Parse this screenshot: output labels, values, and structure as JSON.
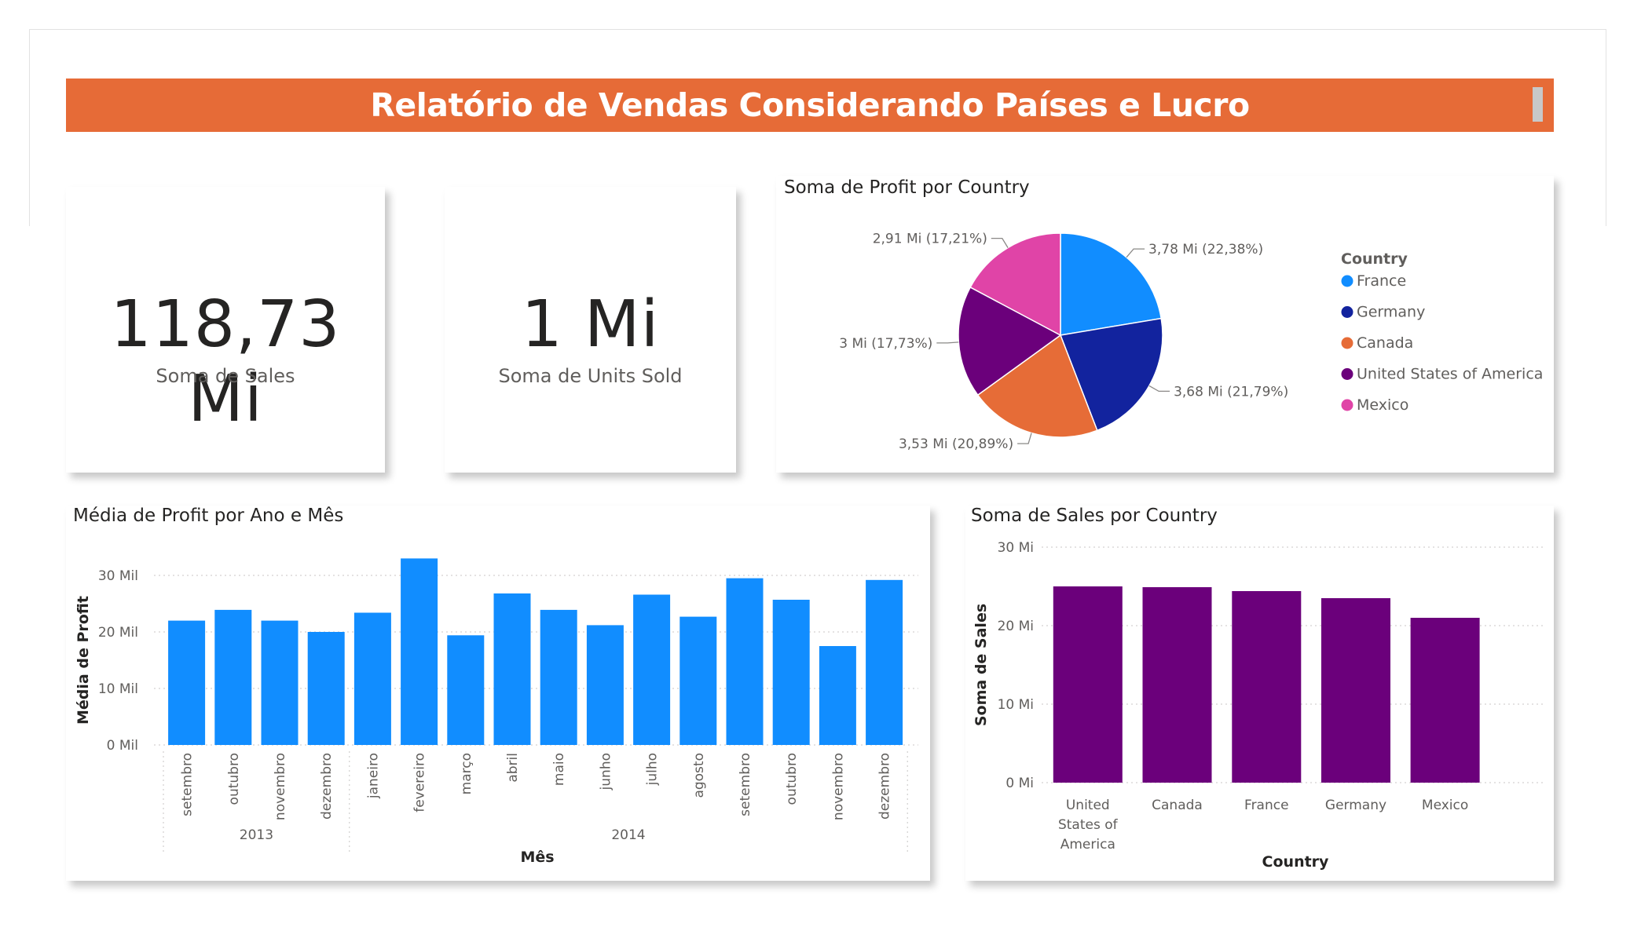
{
  "report": {
    "title": "Relatório de Vendas Considerando Países e Lucro"
  },
  "kpis": [
    {
      "value": "118,73 Mi",
      "label": "Soma de  Sales"
    },
    {
      "value": "1 Mi",
      "label": "Soma de Units Sold"
    }
  ],
  "colors": {
    "banner": "#e66b37",
    "bar_blue": "#118dff",
    "bar_purple": "#6b007b",
    "france": "#118dff",
    "germany": "#12239e",
    "canada": "#e66c37",
    "usa": "#6b007b",
    "mexico": "#e044a7"
  },
  "chart_data": [
    {
      "type": "pie",
      "title": "Soma de Profit por Country",
      "legend_title": "Country",
      "legend_position": "right",
      "slices": [
        {
          "name": "France",
          "value": 3.78,
          "percent": 22.38,
          "label": "3,78 Mi (22,38%)",
          "color": "#118dff"
        },
        {
          "name": "Germany",
          "value": 3.68,
          "percent": 21.79,
          "label": "3,68 Mi (21,79%)",
          "color": "#12239e"
        },
        {
          "name": "Canada",
          "value": 3.53,
          "percent": 20.89,
          "label": "3,53 Mi (20,89%)",
          "color": "#e66c37"
        },
        {
          "name": "United States of America",
          "value": 3.0,
          "percent": 17.73,
          "label": "3 Mi (17,73%)",
          "color": "#6b007b"
        },
        {
          "name": "Mexico",
          "value": 2.91,
          "percent": 17.21,
          "label": "2,91 Mi (17,21%)",
          "color": "#e044a7"
        }
      ]
    },
    {
      "type": "bar",
      "title": "Média de Profit por Ano e Mês",
      "xlabel": "Mês",
      "ylabel": "Média de Profit",
      "ylim": [
        0,
        30
      ],
      "yticks": [
        0,
        10,
        20,
        30
      ],
      "ytick_labels": [
        "0 Mil",
        "10 Mil",
        "20 Mil",
        "30 Mil"
      ],
      "grid": true,
      "categories": [
        "setembro",
        "outubro",
        "novembro",
        "dezembro",
        "janeiro",
        "fevereiro",
        "março",
        "abril",
        "maio",
        "junho",
        "julho",
        "agosto",
        "setembro",
        "outubro",
        "novembro",
        "dezembro"
      ],
      "groups": [
        {
          "label": "2013",
          "count": 4
        },
        {
          "label": "2014",
          "count": 12
        }
      ],
      "values": [
        22.0,
        23.9,
        22.0,
        20.0,
        23.4,
        33.0,
        19.4,
        26.8,
        23.9,
        21.2,
        26.6,
        22.7,
        29.5,
        25.7,
        17.5,
        29.2
      ]
    },
    {
      "type": "bar",
      "title": "Soma de Sales por Country",
      "xlabel": "Country",
      "ylabel": "Soma de Sales",
      "ylim": [
        0,
        30
      ],
      "yticks": [
        0,
        10,
        20,
        30
      ],
      "ytick_labels": [
        "0 Mi",
        "10 Mi",
        "20 Mi",
        "30 Mi"
      ],
      "grid": true,
      "categories": [
        "United States of America",
        "Canada",
        "France",
        "Germany",
        "Mexico"
      ],
      "values": [
        25.0,
        24.9,
        24.4,
        23.5,
        21.0
      ]
    }
  ]
}
